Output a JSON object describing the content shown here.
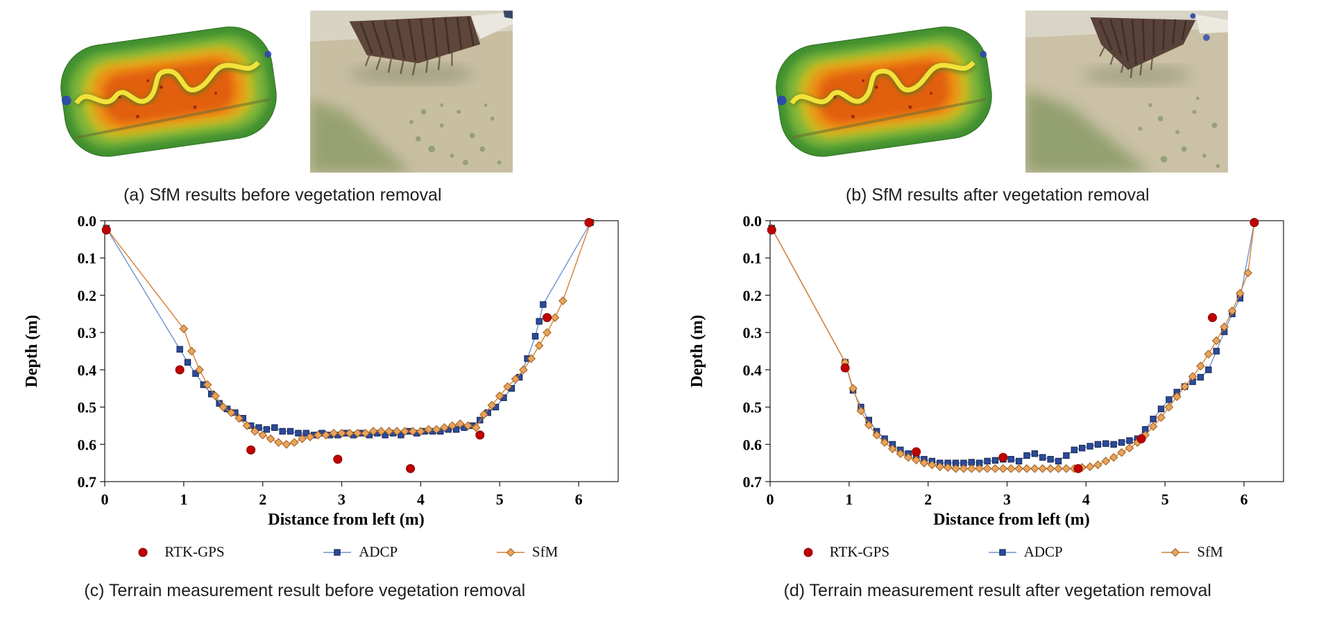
{
  "panels": {
    "a": {
      "caption": "(a) SfM results before vegetation removal"
    },
    "b": {
      "caption": "(b) SfM results after vegetation removal"
    },
    "c": {
      "caption": "(c) Terrain measurement result before vegetation removal"
    },
    "d": {
      "caption": "(d) Terrain measurement result after vegetation removal"
    }
  },
  "colors": {
    "rtk_gps": "#c00000",
    "adcp_line": "#7091cf",
    "adcp_marker": "#2b4a9b",
    "sfm_line": "#d57f2f",
    "sfm_marker": "#e8a35c"
  },
  "chart_data": [
    {
      "type": "scatter",
      "panel": "c",
      "title": "",
      "xlabel": "Distance from left (m)",
      "ylabel": "Depth (m)",
      "xlim": [
        0,
        6.5
      ],
      "ylim": [
        0,
        0.7
      ],
      "y_direction": "depth-downward",
      "grid": false,
      "legend_position": "bottom",
      "x_ticks": [
        "0",
        "1",
        "2",
        "3",
        "4",
        "5",
        "6"
      ],
      "y_ticks": [
        "0.0",
        "0.1",
        "0.2",
        "0.3",
        "0.4",
        "0.5",
        "0.6",
        "0.7"
      ],
      "series": [
        {
          "name": "ADCP",
          "marker": "square",
          "line": true,
          "color": "#7091cf",
          "marker_fill": "#2b4a9b",
          "marker_stroke": "#16254f",
          "points": [
            [
              0.02,
              0.02
            ],
            [
              0.95,
              0.345
            ],
            [
              1.05,
              0.38
            ],
            [
              1.15,
              0.41
            ],
            [
              1.25,
              0.44
            ],
            [
              1.35,
              0.465
            ],
            [
              1.45,
              0.49
            ],
            [
              1.55,
              0.505
            ],
            [
              1.65,
              0.515
            ],
            [
              1.75,
              0.53
            ],
            [
              1.85,
              0.55
            ],
            [
              1.95,
              0.555
            ],
            [
              2.05,
              0.56
            ],
            [
              2.15,
              0.555
            ],
            [
              2.25,
              0.565
            ],
            [
              2.35,
              0.565
            ],
            [
              2.45,
              0.57
            ],
            [
              2.55,
              0.57
            ],
            [
              2.65,
              0.575
            ],
            [
              2.75,
              0.57
            ],
            [
              2.85,
              0.575
            ],
            [
              2.95,
              0.575
            ],
            [
              3.05,
              0.57
            ],
            [
              3.15,
              0.575
            ],
            [
              3.25,
              0.57
            ],
            [
              3.35,
              0.575
            ],
            [
              3.45,
              0.57
            ],
            [
              3.55,
              0.575
            ],
            [
              3.65,
              0.57
            ],
            [
              3.75,
              0.575
            ],
            [
              3.85,
              0.565
            ],
            [
              3.95,
              0.57
            ],
            [
              4.05,
              0.565
            ],
            [
              4.15,
              0.565
            ],
            [
              4.25,
              0.565
            ],
            [
              4.35,
              0.56
            ],
            [
              4.45,
              0.56
            ],
            [
              4.55,
              0.555
            ],
            [
              4.65,
              0.55
            ],
            [
              4.75,
              0.535
            ],
            [
              4.85,
              0.515
            ],
            [
              4.95,
              0.5
            ],
            [
              5.05,
              0.475
            ],
            [
              5.15,
              0.45
            ],
            [
              5.25,
              0.42
            ],
            [
              5.35,
              0.37
            ],
            [
              5.45,
              0.31
            ],
            [
              5.5,
              0.27
            ],
            [
              5.55,
              0.225
            ],
            [
              6.15,
              0.005
            ]
          ]
        },
        {
          "name": "SfM",
          "marker": "diamond",
          "line": true,
          "color": "#d57f2f",
          "marker_fill": "#e8a35c",
          "marker_stroke": "#9d5c1c",
          "points": [
            [
              0.02,
              0.02
            ],
            [
              1.0,
              0.29
            ],
            [
              1.1,
              0.35
            ],
            [
              1.2,
              0.4
            ],
            [
              1.3,
              0.44
            ],
            [
              1.4,
              0.47
            ],
            [
              1.5,
              0.5
            ],
            [
              1.6,
              0.515
            ],
            [
              1.7,
              0.53
            ],
            [
              1.8,
              0.55
            ],
            [
              1.9,
              0.565
            ],
            [
              2.0,
              0.575
            ],
            [
              2.1,
              0.585
            ],
            [
              2.2,
              0.595
            ],
            [
              2.3,
              0.6
            ],
            [
              2.4,
              0.595
            ],
            [
              2.5,
              0.585
            ],
            [
              2.6,
              0.58
            ],
            [
              2.7,
              0.575
            ],
            [
              2.8,
              0.575
            ],
            [
              2.9,
              0.57
            ],
            [
              3.0,
              0.57
            ],
            [
              3.1,
              0.57
            ],
            [
              3.2,
              0.57
            ],
            [
              3.3,
              0.57
            ],
            [
              3.4,
              0.565
            ],
            [
              3.5,
              0.565
            ],
            [
              3.6,
              0.565
            ],
            [
              3.7,
              0.565
            ],
            [
              3.8,
              0.565
            ],
            [
              3.9,
              0.565
            ],
            [
              4.0,
              0.565
            ],
            [
              4.1,
              0.56
            ],
            [
              4.2,
              0.56
            ],
            [
              4.3,
              0.555
            ],
            [
              4.4,
              0.55
            ],
            [
              4.5,
              0.545
            ],
            [
              4.6,
              0.55
            ],
            [
              4.7,
              0.555
            ],
            [
              4.8,
              0.52
            ],
            [
              4.9,
              0.495
            ],
            [
              5.0,
              0.47
            ],
            [
              5.1,
              0.445
            ],
            [
              5.2,
              0.425
            ],
            [
              5.3,
              0.4
            ],
            [
              5.4,
              0.37
            ],
            [
              5.5,
              0.335
            ],
            [
              5.6,
              0.3
            ],
            [
              5.7,
              0.26
            ],
            [
              5.8,
              0.215
            ],
            [
              6.15,
              0.005
            ]
          ]
        },
        {
          "name": "RTK-GPS",
          "marker": "circle",
          "line": false,
          "color": "#c00000",
          "marker_fill": "#c00000",
          "marker_stroke": "#7f0000",
          "points": [
            [
              0.02,
              0.025
            ],
            [
              0.95,
              0.4
            ],
            [
              1.85,
              0.615
            ],
            [
              2.95,
              0.64
            ],
            [
              3.87,
              0.665
            ],
            [
              4.75,
              0.575
            ],
            [
              5.6,
              0.26
            ],
            [
              6.13,
              0.005
            ]
          ]
        }
      ],
      "legend_order": [
        "RTK-GPS",
        "ADCP",
        "SfM"
      ]
    },
    {
      "type": "scatter",
      "panel": "d",
      "title": "",
      "xlabel": "Distance from left (m)",
      "ylabel": "Depth (m)",
      "xlim": [
        0,
        6.5
      ],
      "ylim": [
        0,
        0.7
      ],
      "y_direction": "depth-downward",
      "grid": false,
      "legend_position": "bottom",
      "x_ticks": [
        "0",
        "1",
        "2",
        "3",
        "4",
        "5",
        "6"
      ],
      "y_ticks": [
        "0.0",
        "0.1",
        "0.2",
        "0.3",
        "0.4",
        "0.5",
        "0.6",
        "0.7"
      ],
      "series": [
        {
          "name": "ADCP",
          "marker": "square",
          "line": true,
          "color": "#7091cf",
          "marker_fill": "#2b4a9b",
          "marker_stroke": "#16254f",
          "points": [
            [
              0.02,
              0.02
            ],
            [
              0.95,
              0.38
            ],
            [
              1.05,
              0.455
            ],
            [
              1.15,
              0.5
            ],
            [
              1.25,
              0.535
            ],
            [
              1.35,
              0.565
            ],
            [
              1.45,
              0.585
            ],
            [
              1.55,
              0.6
            ],
            [
              1.65,
              0.615
            ],
            [
              1.75,
              0.625
            ],
            [
              1.85,
              0.63
            ],
            [
              1.95,
              0.64
            ],
            [
              2.05,
              0.645
            ],
            [
              2.15,
              0.65
            ],
            [
              2.25,
              0.65
            ],
            [
              2.35,
              0.65
            ],
            [
              2.45,
              0.65
            ],
            [
              2.55,
              0.648
            ],
            [
              2.65,
              0.65
            ],
            [
              2.75,
              0.645
            ],
            [
              2.85,
              0.643
            ],
            [
              2.95,
              0.64
            ],
            [
              3.05,
              0.64
            ],
            [
              3.15,
              0.645
            ],
            [
              3.25,
              0.63
            ],
            [
              3.35,
              0.625
            ],
            [
              3.45,
              0.635
            ],
            [
              3.55,
              0.64
            ],
            [
              3.65,
              0.645
            ],
            [
              3.75,
              0.63
            ],
            [
              3.85,
              0.615
            ],
            [
              3.95,
              0.61
            ],
            [
              4.05,
              0.605
            ],
            [
              4.15,
              0.6
            ],
            [
              4.25,
              0.598
            ],
            [
              4.35,
              0.6
            ],
            [
              4.45,
              0.595
            ],
            [
              4.55,
              0.59
            ],
            [
              4.65,
              0.585
            ],
            [
              4.75,
              0.56
            ],
            [
              4.85,
              0.532
            ],
            [
              4.95,
              0.505
            ],
            [
              5.05,
              0.48
            ],
            [
              5.15,
              0.46
            ],
            [
              5.25,
              0.445
            ],
            [
              5.35,
              0.432
            ],
            [
              5.45,
              0.42
            ],
            [
              5.55,
              0.4
            ],
            [
              5.65,
              0.35
            ],
            [
              5.75,
              0.298
            ],
            [
              5.85,
              0.25
            ],
            [
              5.95,
              0.208
            ],
            [
              6.13,
              0.005
            ]
          ]
        },
        {
          "name": "SfM",
          "marker": "diamond",
          "line": true,
          "color": "#d57f2f",
          "marker_fill": "#e8a35c",
          "marker_stroke": "#9d5c1c",
          "points": [
            [
              0.02,
              0.02
            ],
            [
              0.95,
              0.38
            ],
            [
              1.05,
              0.45
            ],
            [
              1.15,
              0.51
            ],
            [
              1.25,
              0.548
            ],
            [
              1.35,
              0.575
            ],
            [
              1.45,
              0.595
            ],
            [
              1.55,
              0.612
            ],
            [
              1.65,
              0.625
            ],
            [
              1.75,
              0.635
            ],
            [
              1.85,
              0.642
            ],
            [
              1.95,
              0.65
            ],
            [
              2.05,
              0.655
            ],
            [
              2.15,
              0.66
            ],
            [
              2.25,
              0.662
            ],
            [
              2.35,
              0.665
            ],
            [
              2.45,
              0.665
            ],
            [
              2.55,
              0.665
            ],
            [
              2.65,
              0.665
            ],
            [
              2.75,
              0.665
            ],
            [
              2.85,
              0.665
            ],
            [
              2.95,
              0.665
            ],
            [
              3.05,
              0.665
            ],
            [
              3.15,
              0.665
            ],
            [
              3.25,
              0.665
            ],
            [
              3.35,
              0.665
            ],
            [
              3.45,
              0.665
            ],
            [
              3.55,
              0.665
            ],
            [
              3.65,
              0.665
            ],
            [
              3.75,
              0.665
            ],
            [
              3.85,
              0.665
            ],
            [
              3.95,
              0.662
            ],
            [
              4.05,
              0.66
            ],
            [
              4.15,
              0.655
            ],
            [
              4.25,
              0.645
            ],
            [
              4.35,
              0.635
            ],
            [
              4.45,
              0.622
            ],
            [
              4.55,
              0.61
            ],
            [
              4.65,
              0.595
            ],
            [
              4.75,
              0.575
            ],
            [
              4.85,
              0.552
            ],
            [
              4.95,
              0.528
            ],
            [
              5.05,
              0.5
            ],
            [
              5.15,
              0.472
            ],
            [
              5.25,
              0.445
            ],
            [
              5.35,
              0.418
            ],
            [
              5.45,
              0.39
            ],
            [
              5.55,
              0.358
            ],
            [
              5.65,
              0.322
            ],
            [
              5.75,
              0.285
            ],
            [
              5.85,
              0.242
            ],
            [
              5.95,
              0.195
            ],
            [
              6.05,
              0.14
            ],
            [
              6.13,
              0.005
            ]
          ]
        },
        {
          "name": "RTK-GPS",
          "marker": "circle",
          "line": false,
          "color": "#c00000",
          "marker_fill": "#c00000",
          "marker_stroke": "#7f0000",
          "points": [
            [
              0.02,
              0.025
            ],
            [
              0.95,
              0.395
            ],
            [
              1.85,
              0.62
            ],
            [
              2.95,
              0.635
            ],
            [
              3.9,
              0.665
            ],
            [
              4.7,
              0.585
            ],
            [
              5.6,
              0.26
            ],
            [
              6.13,
              0.005
            ]
          ]
        }
      ],
      "legend_order": [
        "RTK-GPS",
        "ADCP",
        "SfM"
      ]
    }
  ]
}
